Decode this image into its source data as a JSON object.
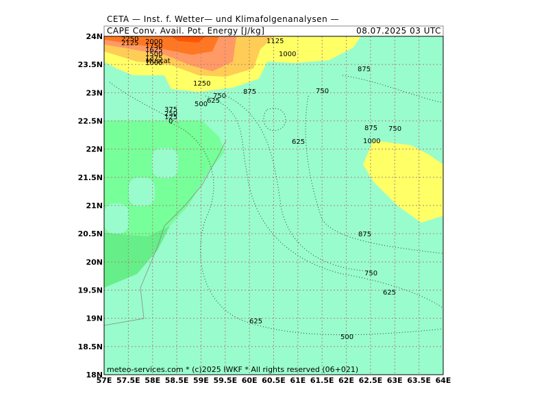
{
  "header": {
    "institute": "CETA — Inst. f. Wetter— und Klimafolgenanalysen —",
    "title": "CAPE  Conv. Avail. Pot. Energy [J/kg]",
    "time": "08.07.2025 03 UTC"
  },
  "axes": {
    "x_labels": [
      "57E",
      "57.5E",
      "58E",
      "58.5E",
      "59E",
      "59.5E",
      "60E",
      "60.5E",
      "61E",
      "61.5E",
      "62E",
      "62.5E",
      "63E",
      "63.5E",
      "64E"
    ],
    "y_labels": [
      "24N",
      "23.5N",
      "23N",
      "22.5N",
      "22N",
      "21.5N",
      "21N",
      "20.5N",
      "20N",
      "19.5N",
      "19N",
      "18.5N",
      "18N"
    ]
  },
  "city": "Muscat",
  "contour_labels": [
    "2250",
    "2125",
    "2000",
    "1750",
    "1625",
    "1500",
    "1375",
    "1000",
    "1125",
    "1000",
    "875",
    "1250",
    "750",
    "875",
    "750",
    "625",
    "500",
    "375",
    "250",
    "125",
    "0",
    "625",
    "875",
    "750",
    "1000",
    "875",
    "750",
    "625",
    "625",
    "500"
  ],
  "footer": "meteo-services.com * (c)2025 IWKF * All rights reserved (06+021)"
}
